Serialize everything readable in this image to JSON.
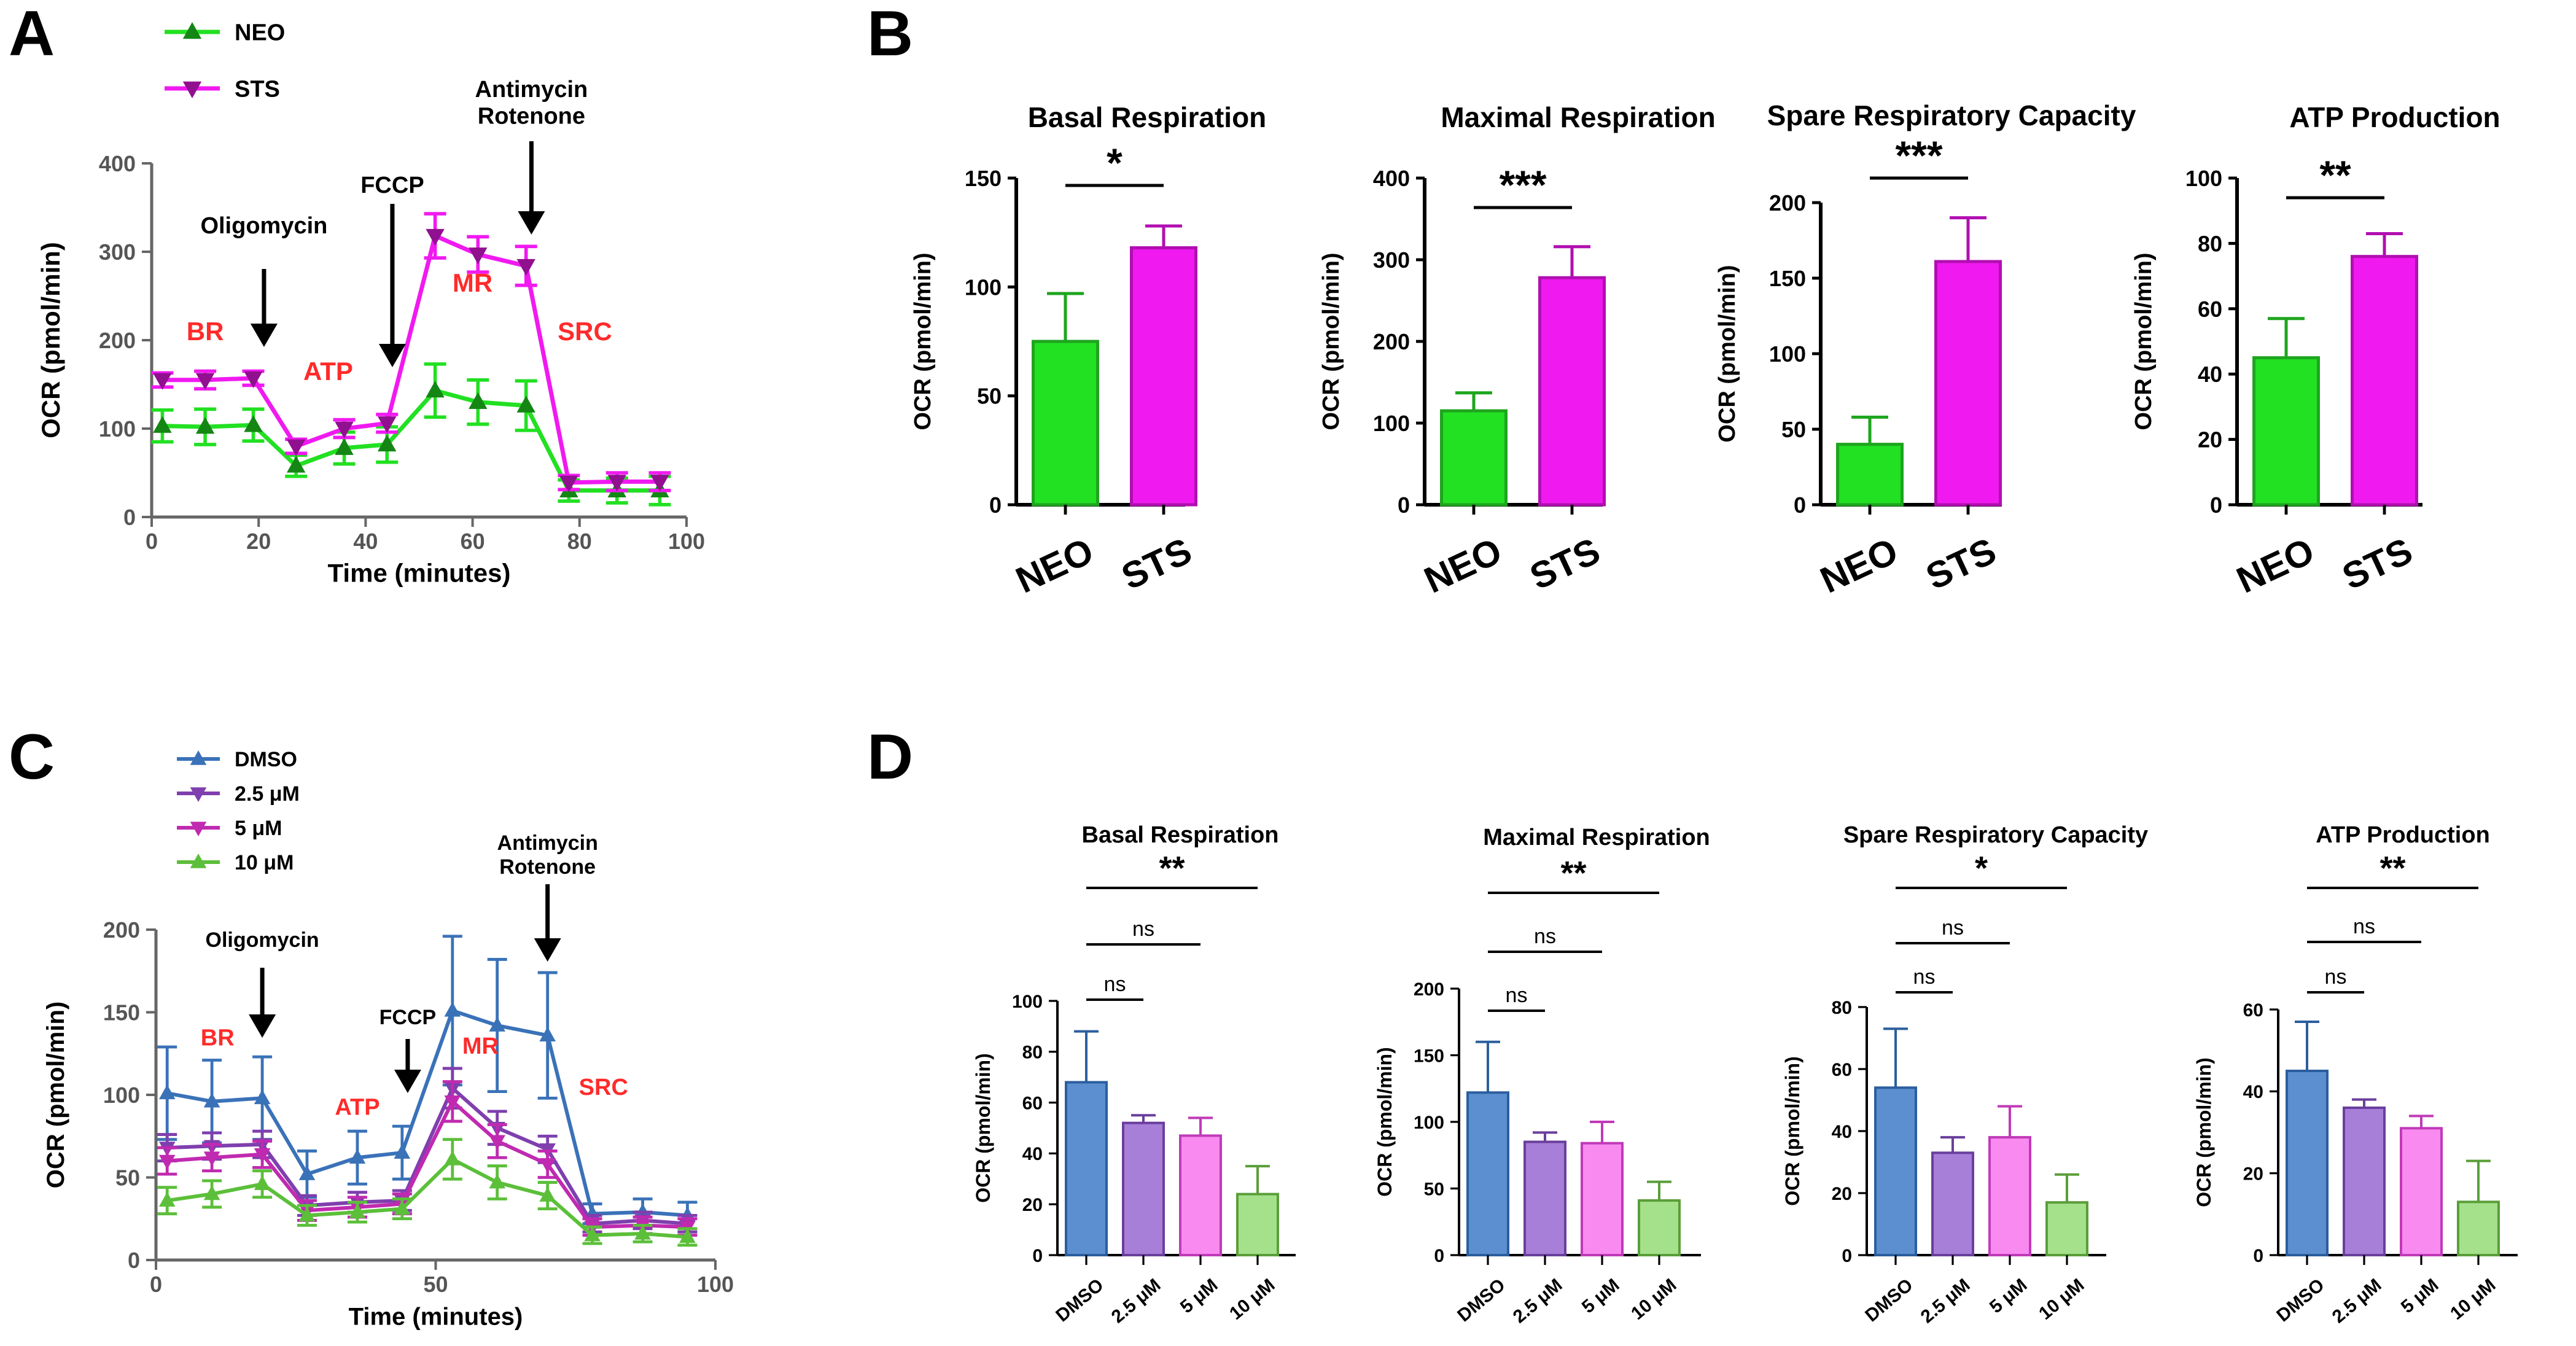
{
  "panels": {
    "A": "A",
    "B": "B",
    "C": "C",
    "D": "D"
  },
  "colors": {
    "neo": "#22e022",
    "sts": "#f01af0",
    "dmso": "#3a72b8",
    "c25": "#7f3fae",
    "c5": "#c02ab0",
    "c10": "#5cbf3a",
    "dmso_fill": "#5b8fd0",
    "c25_fill": "#a77fd9",
    "c5_fill": "#f88af0",
    "c10_fill": "#a5e08a",
    "annot": "#ff2b2b"
  },
  "chart_data": [
    {
      "id": "A",
      "type": "line",
      "xlabel": "Time (minutes)",
      "ylabel": "OCR (pmol/min)",
      "xlim": [
        0,
        100
      ],
      "ylim": [
        0,
        400
      ],
      "xticks": [
        0,
        20,
        40,
        60,
        80,
        100
      ],
      "yticks": [
        0,
        100,
        200,
        300,
        400
      ],
      "x": [
        2,
        10,
        19,
        27,
        36,
        44,
        53,
        61,
        70,
        78,
        87,
        95
      ],
      "series": [
        {
          "name": "NEO",
          "marker": "triangle-up",
          "color_key": "neo",
          "values": [
            103,
            102,
            104,
            58,
            78,
            82,
            143,
            130,
            126,
            30,
            30,
            30
          ],
          "errors": [
            18,
            20,
            18,
            12,
            18,
            20,
            30,
            25,
            28,
            12,
            14,
            16
          ]
        },
        {
          "name": "STS",
          "marker": "triangle-down",
          "color_key": "sts",
          "values": [
            155,
            155,
            157,
            80,
            100,
            106,
            318,
            297,
            284,
            39,
            40,
            40
          ],
          "errors": [
            8,
            10,
            8,
            8,
            10,
            10,
            25,
            20,
            22,
            8,
            10,
            10
          ]
        }
      ],
      "annotations": {
        "arrows": [
          {
            "label": "Oligomycin",
            "x": 21
          },
          {
            "label": "FCCP",
            "x": 45
          },
          {
            "label": "Antimycin\nRotenone",
            "x": 71
          }
        ],
        "phases": [
          {
            "label": "BR",
            "x": 10,
            "y": 200
          },
          {
            "label": "ATP",
            "x": 33,
            "y": 155
          },
          {
            "label": "MR",
            "x": 60,
            "y": 255
          },
          {
            "label": "SRC",
            "x": 81,
            "y": 200
          }
        ]
      }
    },
    {
      "id": "B",
      "type": "bar",
      "ylabel": "OCR (pmol/min)",
      "categories": [
        "NEO",
        "STS"
      ],
      "subplots": [
        {
          "title": "Basal Respiration",
          "ylim": [
            0,
            150
          ],
          "yticks": [
            0,
            50,
            100,
            150
          ],
          "values": [
            75,
            118
          ],
          "errors": [
            22,
            10
          ],
          "sig": "*"
        },
        {
          "title": "Maximal Respiration",
          "ylim": [
            0,
            400
          ],
          "yticks": [
            0,
            100,
            200,
            300,
            400
          ],
          "values": [
            115,
            278
          ],
          "errors": [
            22,
            38
          ],
          "sig": "***"
        },
        {
          "title": "Spare Respiratory Capacity",
          "ylim": [
            0,
            200
          ],
          "yticks": [
            0,
            50,
            100,
            150,
            200
          ],
          "values": [
            40,
            161
          ],
          "errors": [
            18,
            29
          ],
          "sig": "***"
        },
        {
          "title": "ATP Production",
          "ylim": [
            0,
            100
          ],
          "yticks": [
            0,
            20,
            40,
            60,
            80,
            100
          ],
          "values": [
            45,
            76
          ],
          "errors": [
            12,
            7
          ],
          "sig": "**"
        }
      ]
    },
    {
      "id": "C",
      "type": "line",
      "xlabel": "Time (minutes)",
      "ylabel": "OCR (pmol/min)",
      "xlim": [
        0,
        100
      ],
      "ylim": [
        0,
        200
      ],
      "xticks": [
        0,
        50,
        100
      ],
      "yticks": [
        0,
        50,
        100,
        150,
        200
      ],
      "x": [
        2,
        10,
        19,
        27,
        36,
        44,
        53,
        61,
        70,
        78,
        87,
        95
      ],
      "series": [
        {
          "name": "DMSO",
          "marker": "triangle-up",
          "color_key": "dmso",
          "values": [
            101,
            96,
            98,
            52,
            62,
            65,
            151,
            142,
            136,
            28,
            29,
            27
          ],
          "errors": [
            28,
            25,
            25,
            14,
            16,
            16,
            45,
            40,
            38,
            6,
            8,
            8
          ]
        },
        {
          "name": "2.5 μM",
          "marker": "triangle-down",
          "color_key": "c25",
          "values": [
            68,
            69,
            70,
            33,
            35,
            36,
            104,
            80,
            67,
            22,
            24,
            22
          ],
          "errors": [
            8,
            8,
            8,
            6,
            6,
            6,
            12,
            10,
            8,
            5,
            5,
            5
          ]
        },
        {
          "name": "5 μM",
          "marker": "triangle-down",
          "color_key": "c5",
          "values": [
            60,
            62,
            64,
            30,
            32,
            34,
            96,
            72,
            58,
            20,
            21,
            20
          ],
          "errors": [
            8,
            8,
            8,
            6,
            6,
            6,
            12,
            10,
            8,
            5,
            5,
            5
          ]
        },
        {
          "name": "10 μM",
          "marker": "triangle-up",
          "color_key": "c10",
          "values": [
            36,
            40,
            46,
            27,
            29,
            31,
            61,
            47,
            39,
            15,
            16,
            14
          ],
          "errors": [
            8,
            8,
            8,
            6,
            6,
            6,
            12,
            10,
            8,
            5,
            5,
            5
          ]
        }
      ],
      "annotations": {
        "arrows": [
          {
            "label": "Oligomycin",
            "x": 19
          },
          {
            "label": "FCCP",
            "x": 45
          },
          {
            "label": "Antimycin\nRotenone",
            "x": 70
          }
        ],
        "phases": [
          {
            "label": "BR",
            "x": 11,
            "y": 130
          },
          {
            "label": "ATP",
            "x": 36,
            "y": 88
          },
          {
            "label": "MR",
            "x": 58,
            "y": 125
          },
          {
            "label": "SRC",
            "x": 80,
            "y": 100
          }
        ]
      }
    },
    {
      "id": "D",
      "type": "bar",
      "ylabel": "OCR (pmol/min)",
      "categories": [
        "DMSO",
        "2.5 μM",
        "5 μM",
        "10 μM"
      ],
      "subplots": [
        {
          "title": "Basal Respiration",
          "ylim": [
            0,
            100
          ],
          "yticks": [
            0,
            20,
            40,
            60,
            80,
            100
          ],
          "values": [
            68,
            52,
            47,
            24
          ],
          "errors": [
            20,
            3,
            7,
            11
          ],
          "comparisons": [
            {
              "label": "ns",
              "to": 1
            },
            {
              "label": "ns",
              "to": 2
            },
            {
              "label": "**",
              "to": 3
            }
          ]
        },
        {
          "title": "Maximal Respiration",
          "ylim": [
            0,
            200
          ],
          "yticks": [
            0,
            50,
            100,
            150,
            200
          ],
          "values": [
            122,
            85,
            84,
            41
          ],
          "errors": [
            38,
            7,
            16,
            14
          ],
          "comparisons": [
            {
              "label": "ns",
              "to": 1
            },
            {
              "label": "ns",
              "to": 2
            },
            {
              "label": "**",
              "to": 3
            }
          ]
        },
        {
          "title": "Spare Respiratory Capacity",
          "ylim": [
            0,
            80
          ],
          "yticks": [
            0,
            20,
            40,
            60,
            80
          ],
          "values": [
            54,
            33,
            38,
            17
          ],
          "errors": [
            19,
            5,
            10,
            9
          ],
          "comparisons": [
            {
              "label": "ns",
              "to": 1
            },
            {
              "label": "ns",
              "to": 2
            },
            {
              "label": "*",
              "to": 3
            }
          ]
        },
        {
          "title": "ATP Production",
          "ylim": [
            0,
            60
          ],
          "yticks": [
            0,
            20,
            40,
            60
          ],
          "values": [
            45,
            36,
            31,
            13
          ],
          "errors": [
            12,
            2,
            3,
            10
          ],
          "comparisons": [
            {
              "label": "ns",
              "to": 1
            },
            {
              "label": "ns",
              "to": 2
            },
            {
              "label": "**",
              "to": 3
            }
          ]
        }
      ]
    }
  ]
}
